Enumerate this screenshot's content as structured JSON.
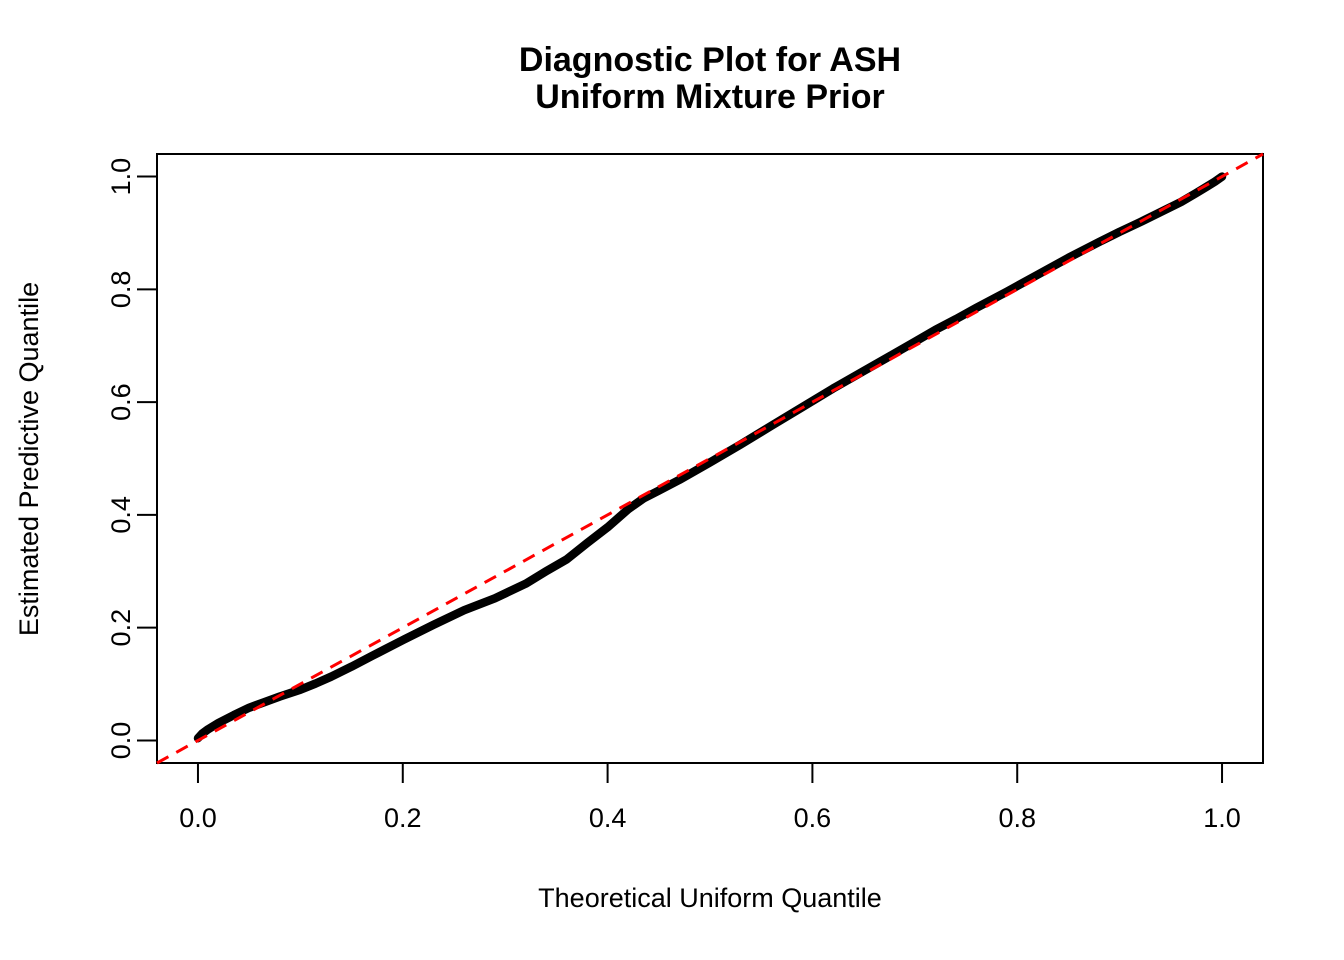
{
  "chart_data": {
    "type": "scatter",
    "title_lines": [
      "Diagnostic Plot for ASH",
      "Uniform Mixture Prior"
    ],
    "xlabel": "Theoretical Uniform Quantile",
    "ylabel": "Estimated Predictive Quantile",
    "xlim": [
      -0.04,
      1.04
    ],
    "ylim": [
      -0.04,
      1.04
    ],
    "x_tick_values": [
      0.0,
      0.2,
      0.4,
      0.6,
      0.8,
      1.0
    ],
    "y_tick_values": [
      0.0,
      0.2,
      0.4,
      0.6,
      0.8,
      1.0
    ],
    "x_tick_labels": [
      "0.0",
      "0.2",
      "0.4",
      "0.6",
      "0.8",
      "1.0"
    ],
    "y_tick_labels": [
      "0.0",
      "0.2",
      "0.4",
      "0.6",
      "0.8",
      "1.0"
    ],
    "grid": false,
    "legend_position": "none",
    "background_color": "#FFFFFF",
    "axis_color": "#000000",
    "series": [
      {
        "name": "estimated_vs_theoretical_quantiles",
        "style": "thick-point-curve",
        "color": "#000000",
        "points": [
          [
            0.0,
            0.004
          ],
          [
            0.004,
            0.012
          ],
          [
            0.01,
            0.02
          ],
          [
            0.02,
            0.031
          ],
          [
            0.035,
            0.045
          ],
          [
            0.05,
            0.058
          ],
          [
            0.065,
            0.068
          ],
          [
            0.08,
            0.078
          ],
          [
            0.1,
            0.09
          ],
          [
            0.115,
            0.101
          ],
          [
            0.13,
            0.113
          ],
          [
            0.15,
            0.131
          ],
          [
            0.17,
            0.15
          ],
          [
            0.2,
            0.178
          ],
          [
            0.23,
            0.205
          ],
          [
            0.26,
            0.231
          ],
          [
            0.29,
            0.252
          ],
          [
            0.32,
            0.278
          ],
          [
            0.34,
            0.3
          ],
          [
            0.36,
            0.321
          ],
          [
            0.38,
            0.35
          ],
          [
            0.4,
            0.378
          ],
          [
            0.42,
            0.41
          ],
          [
            0.435,
            0.429
          ],
          [
            0.45,
            0.443
          ],
          [
            0.47,
            0.462
          ],
          [
            0.5,
            0.493
          ],
          [
            0.53,
            0.525
          ],
          [
            0.56,
            0.558
          ],
          [
            0.59,
            0.591
          ],
          [
            0.62,
            0.624
          ],
          [
            0.65,
            0.655
          ],
          [
            0.68,
            0.686
          ],
          [
            0.7,
            0.707
          ],
          [
            0.72,
            0.728
          ],
          [
            0.74,
            0.747
          ],
          [
            0.76,
            0.767
          ],
          [
            0.79,
            0.796
          ],
          [
            0.82,
            0.826
          ],
          [
            0.85,
            0.856
          ],
          [
            0.88,
            0.884
          ],
          [
            0.9,
            0.902
          ],
          [
            0.92,
            0.919
          ],
          [
            0.94,
            0.937
          ],
          [
            0.96,
            0.955
          ],
          [
            0.975,
            0.971
          ],
          [
            0.985,
            0.982
          ],
          [
            0.993,
            0.991
          ],
          [
            1.0,
            1.0
          ]
        ]
      },
      {
        "name": "reference_line_y_equals_x",
        "style": "dashed-line",
        "color": "#FF0000",
        "points": [
          [
            -0.04,
            -0.04
          ],
          [
            1.04,
            1.04
          ]
        ]
      }
    ]
  }
}
